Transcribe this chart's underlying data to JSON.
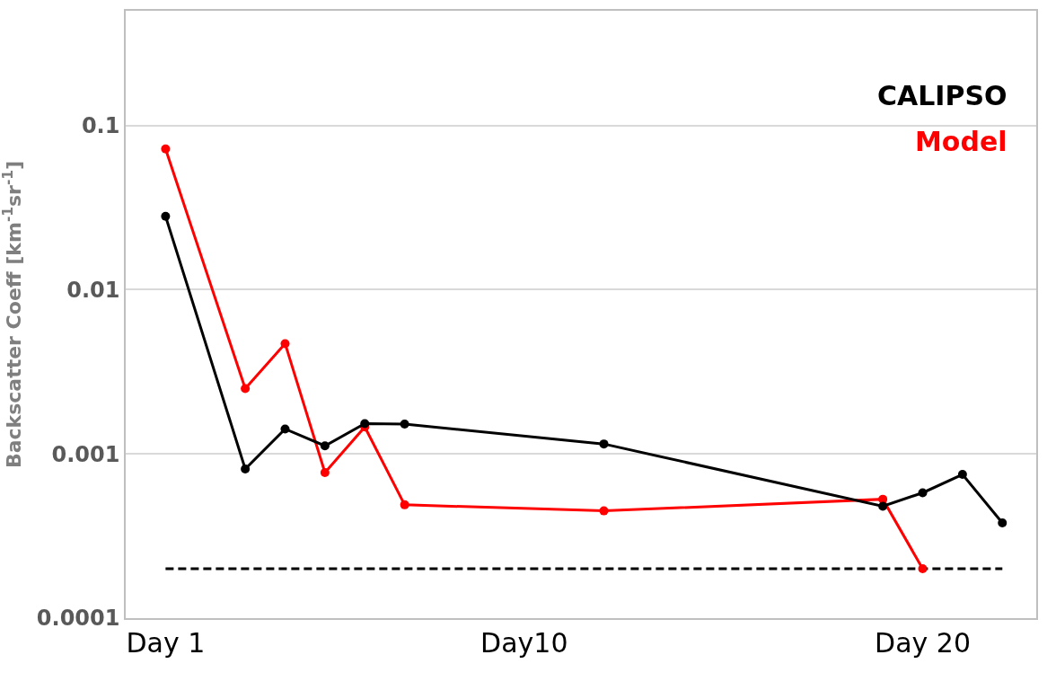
{
  "chart_data": {
    "type": "line",
    "ylabel": "Backscatter Coeff [km$^{-1}$sr$^{-1}$]",
    "categories": [
      "Day 1",
      null,
      null,
      null,
      null,
      null,
      null,
      null,
      null,
      "Day10",
      null,
      null,
      null,
      null,
      null,
      null,
      null,
      null,
      null,
      "Day 20",
      null,
      null
    ],
    "ylim": [
      0.0001,
      0.5
    ],
    "yticks": [
      0.0001,
      0.001,
      0.01,
      0.1
    ],
    "log": "y",
    "grid": "y",
    "legend": false,
    "marker": "circle",
    "series": [
      {
        "name": "CALIPSO",
        "color": "#000000",
        "values": [
          0.028,
          null,
          0.00081,
          0.00142,
          0.00112,
          0.00153,
          0.00152,
          null,
          null,
          null,
          null,
          0.00115,
          null,
          null,
          null,
          null,
          null,
          null,
          0.00048,
          0.00058,
          0.00075,
          0.00038
        ]
      },
      {
        "name": "Model",
        "color": "#ff0000",
        "values": [
          0.072,
          null,
          0.0025,
          0.0047,
          0.00077,
          0.00146,
          0.00049,
          null,
          null,
          null,
          null,
          0.00045,
          null,
          null,
          null,
          null,
          null,
          null,
          0.00053,
          0.0002,
          null,
          null
        ]
      },
      {
        "color": "#000000",
        "values": [
          0.0002,
          0.0002,
          0.0002,
          0.0002,
          0.0002,
          0.0002,
          0.0002,
          0.0002,
          0.0002,
          0.0002,
          0.0002,
          0.0002,
          0.0002,
          0.0002,
          0.0002,
          0.0002,
          0.0002,
          0.0002,
          0.0002,
          0.0002,
          0.0002,
          0.0002
        ],
        "marker": "none",
        "line_style": "dashed"
      }
    ]
  }
}
